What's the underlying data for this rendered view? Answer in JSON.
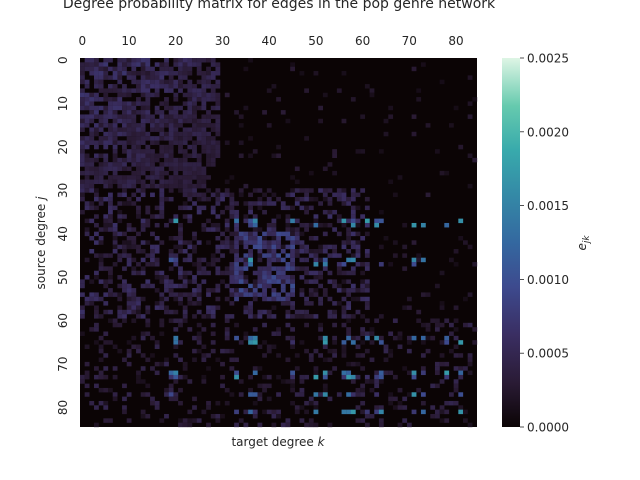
{
  "chart_data": {
    "type": "heatmap",
    "title": "Degree probability matrix for edges in the pop genre network",
    "xlabel": "target degree ",
    "xlabel_var": "k",
    "ylabel": "source degree ",
    "ylabel_var": "j",
    "x_ticks": [
      0,
      10,
      20,
      30,
      40,
      50,
      60,
      70,
      80
    ],
    "y_ticks": [
      0,
      10,
      20,
      30,
      40,
      50,
      60,
      70,
      80
    ],
    "grid_size": 85,
    "axis_position": "top",
    "colorbar": {
      "label": "e",
      "label_sub": "jk",
      "vmin": 0.0,
      "vmax": 0.0025,
      "ticks": [
        "0.0000",
        "0.0005",
        "0.0010",
        "0.0015",
        "0.0020",
        "0.0025"
      ],
      "colormap": "mako"
    }
  }
}
